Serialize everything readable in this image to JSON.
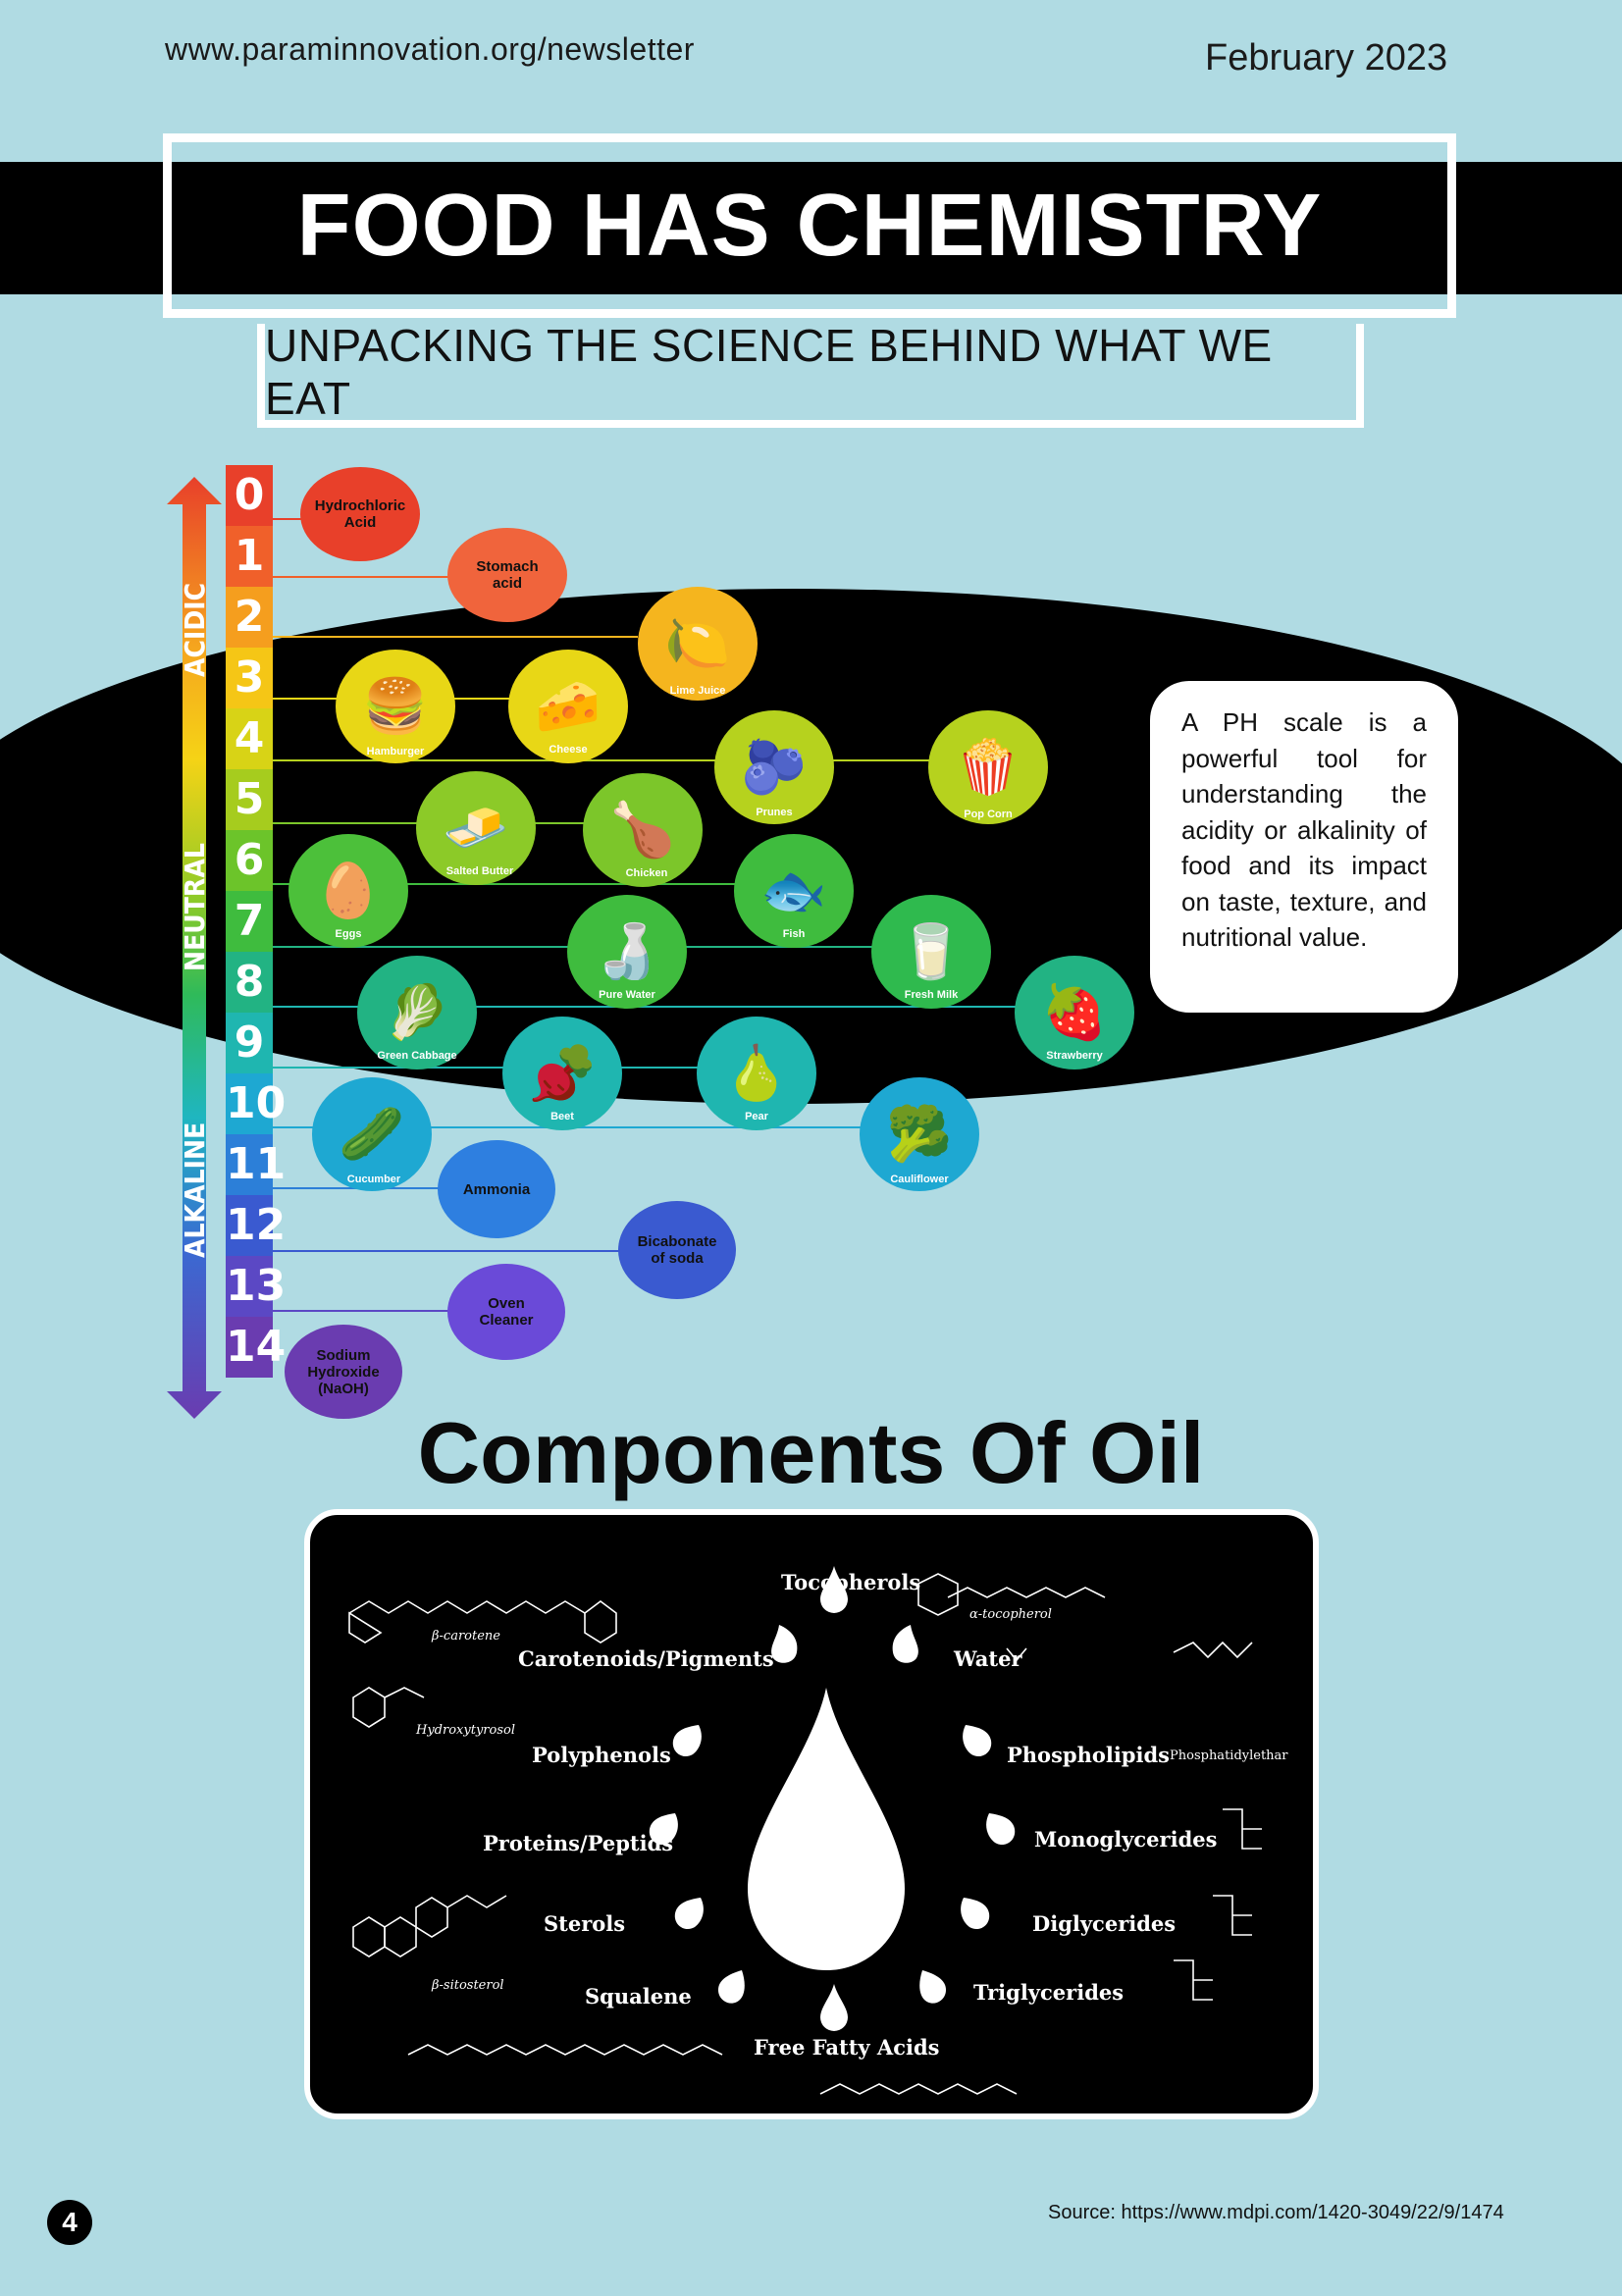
{
  "header": {
    "url": "www.paraminnovation.org/newsletter",
    "date": "February 2023",
    "title": "FOOD HAS CHEMISTRY",
    "subtitle": "UNPACKING THE SCIENCE BEHIND WHAT WE EAT"
  },
  "ph_chart": {
    "scale": [
      "0",
      "1",
      "2",
      "3",
      "4",
      "5",
      "6",
      "7",
      "8",
      "9",
      "10",
      "11",
      "12",
      "13",
      "14"
    ],
    "regions": [
      "ACIDIC",
      "NEUTRAL",
      "ALKALINE"
    ],
    "chemicals": {
      "hydrochloric": "Hydrochloric Acid",
      "stomach": "Stomach acid",
      "ammonia": "Ammonia",
      "bicarbonate": "Bicabonate of soda",
      "oven": "Oven Cleaner",
      "naoh": "Sodium Hydroxide (NaOH)"
    },
    "foods": {
      "lime": "Lime Juice",
      "hamburger": "Hamburger",
      "cheese": "Cheese",
      "prunes": "Prunes",
      "popcorn": "Pop Corn",
      "butter": "Salted Butter",
      "chicken": "Chicken",
      "eggs": "Eggs",
      "fish": "Fish",
      "water": "Pure Water",
      "milk": "Fresh Milk",
      "cabbage": "Green Cabbage",
      "strawberry": "Strawberry",
      "beet": "Beet",
      "pear": "Pear",
      "cucumber": "Cucumber",
      "cauliflower": "Cauliflower"
    },
    "info": "A PH scale is a powerful tool for understanding the acidity or alkalinity of food and its impact on taste, texture, and nutritional value.",
    "colors": [
      "#e8402a",
      "#f0602a",
      "#f59e1e",
      "#f5c616",
      "#e8d716",
      "#b6d21e",
      "#7cc62a",
      "#3fbc3e",
      "#22b383",
      "#1fb6b0",
      "#1ea8d2",
      "#2c7fd8",
      "#3a5ad0",
      "#5b48c4",
      "#6a3cb0"
    ]
  },
  "oil": {
    "heading": "Components Of Oil",
    "components": {
      "tocopherols": "Tocopherols",
      "carotenoids": "Carotenoids/Pigments",
      "water": "Water",
      "polyphenols": "Polyphenols",
      "phospholipids": "Phospholipids",
      "proteins": "Proteins/Peptids",
      "monoglycerides": "Monoglycerides",
      "sterols": "Sterols",
      "diglycerides": "Diglycerides",
      "squalene": "Squalene",
      "triglycerides": "Triglycerides",
      "ffa": "Free Fatty Acids"
    },
    "molecules": {
      "carotene": "β-carotene",
      "tocopherol": "α-tocopherol",
      "hydroxytyrosol": "Hydroxytyrosol",
      "phosphatidyl": "Phosphatidylethar",
      "sitosterol": "β-sitosterol"
    }
  },
  "footer": {
    "page": "4",
    "source": "Source: https://www.mdpi.com/1420-3049/22/9/1474"
  }
}
